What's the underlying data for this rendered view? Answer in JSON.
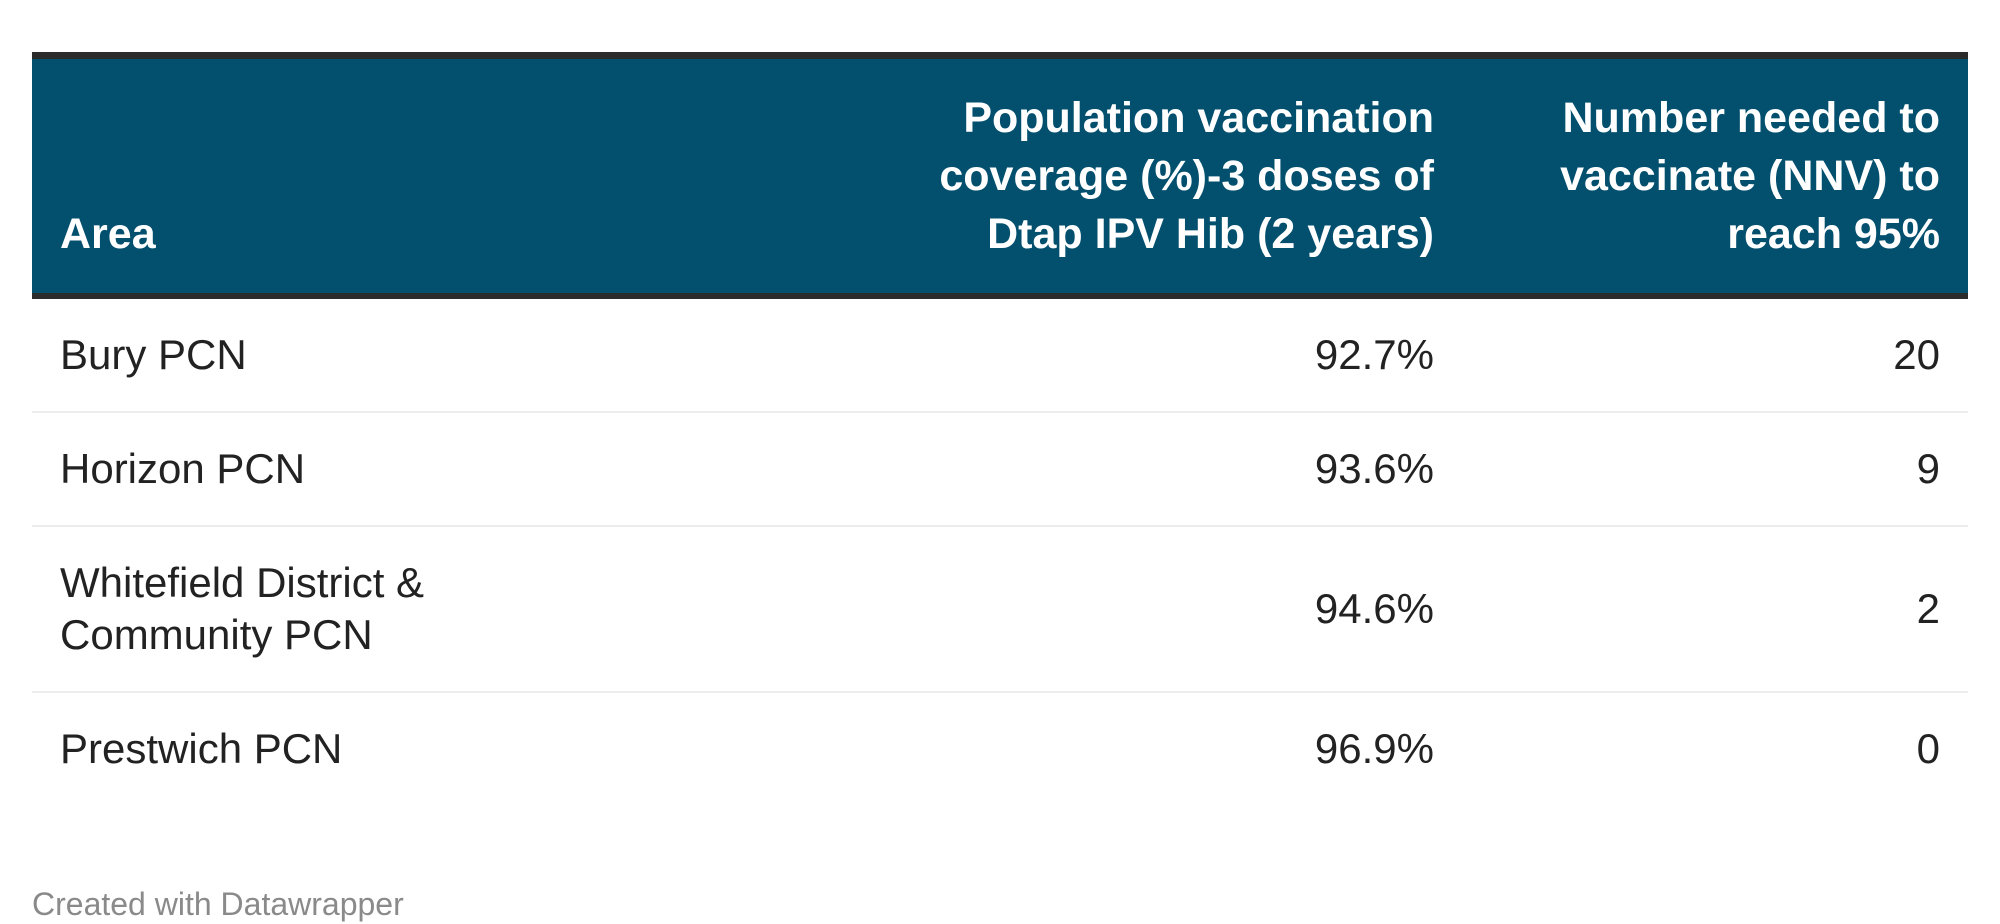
{
  "chart_data": {
    "type": "table",
    "columns": [
      "Area",
      "Population vaccination coverage (%)-3 doses of Dtap IPV Hib (2 years)",
      "Number needed to vaccinate (NNV) to reach 95%"
    ],
    "rows": [
      {
        "area": "Bury PCN",
        "coverage": "92.7%",
        "nnv": "20"
      },
      {
        "area": "Horizon PCN",
        "coverage": "93.6%",
        "nnv": "9"
      },
      {
        "area": "Whitefield District & Community PCN",
        "coverage": "94.6%",
        "nnv": "2"
      },
      {
        "area": "Prestwich PCN",
        "coverage": "96.9%",
        "nnv": "0"
      }
    ],
    "header_color": "#034f6e"
  },
  "footer": {
    "credit": "Created with Datawrapper"
  }
}
